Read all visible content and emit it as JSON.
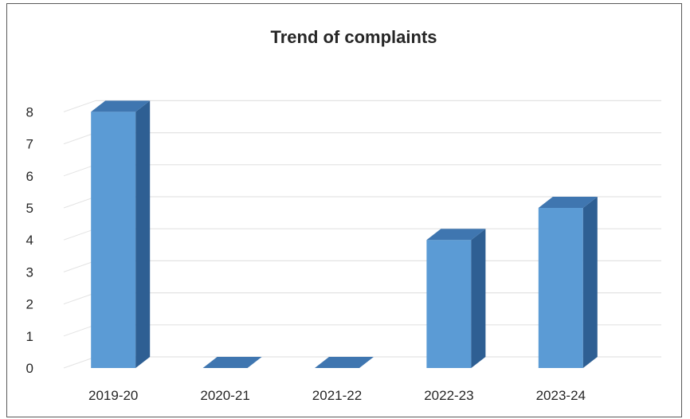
{
  "chart_data": {
    "type": "bar",
    "title": "Trend of complaints",
    "xlabel": "",
    "ylabel": "",
    "categories": [
      "2019-20",
      "2020-21",
      "2021-22",
      "2022-23",
      "2023-24"
    ],
    "values": [
      8,
      0,
      0,
      4,
      5
    ],
    "ylim": [
      0,
      8
    ],
    "yticks": [
      "0",
      "1",
      "2",
      "3",
      "4",
      "5",
      "6",
      "7",
      "8"
    ],
    "grid": true,
    "legend": "none",
    "style": "3d-column",
    "colors": {
      "bar_front": "#5b9bd5",
      "bar_side": "#2e5f93",
      "bar_top": "#3f76b0",
      "grid": "#e3e3e3"
    }
  }
}
